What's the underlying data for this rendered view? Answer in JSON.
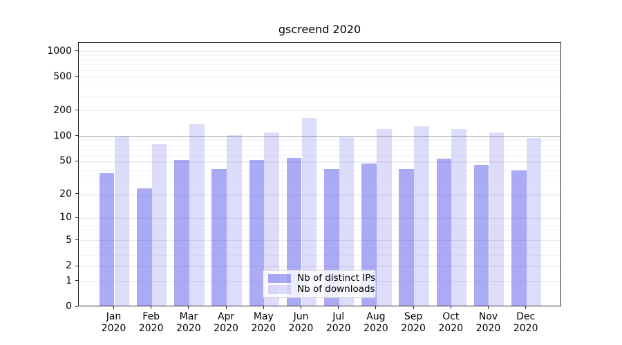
{
  "title": "gscreend 2020",
  "chart_data": {
    "type": "bar",
    "title": "gscreend 2020",
    "categories": [
      "Jan 2020",
      "Feb 2020",
      "Mar 2020",
      "Apr 2020",
      "May 2020",
      "Jun 2020",
      "Jul 2020",
      "Aug 2020",
      "Sep 2020",
      "Oct 2020",
      "Nov 2020",
      "Dec 2020"
    ],
    "series": [
      {
        "name": "Nb of distinct IPs",
        "values": [
          35,
          23,
          50,
          39,
          50,
          53,
          39,
          46,
          39,
          52,
          44,
          38
        ]
      },
      {
        "name": "Nb of downloads",
        "values": [
          95,
          77,
          133,
          99,
          107,
          160,
          94,
          117,
          126,
          117,
          106,
          92
        ]
      }
    ],
    "xlabel": "",
    "ylabel": "",
    "yscale": "log1p",
    "y_ticks": [
      0,
      1,
      2,
      5,
      10,
      20,
      50,
      100,
      200,
      500,
      1000
    ],
    "y_minor_ticks": [
      3,
      4,
      6,
      7,
      8,
      19,
      29,
      39,
      49,
      59,
      69,
      79,
      89,
      199,
      299,
      399,
      499,
      599,
      699,
      799,
      899
    ],
    "reference_line": 100,
    "ylim": [
      0,
      1260
    ],
    "grid": true,
    "legend_position": "lower center"
  },
  "colors": {
    "bar_ips": "rgba(85,85,235,0.5)",
    "bar_downloads": "rgba(85,85,235,0.2)",
    "reference_line": "#b0b0b0",
    "grid_major": "#e7e7e7",
    "grid_minor": "#f4f4f4",
    "axis": "#262626"
  }
}
